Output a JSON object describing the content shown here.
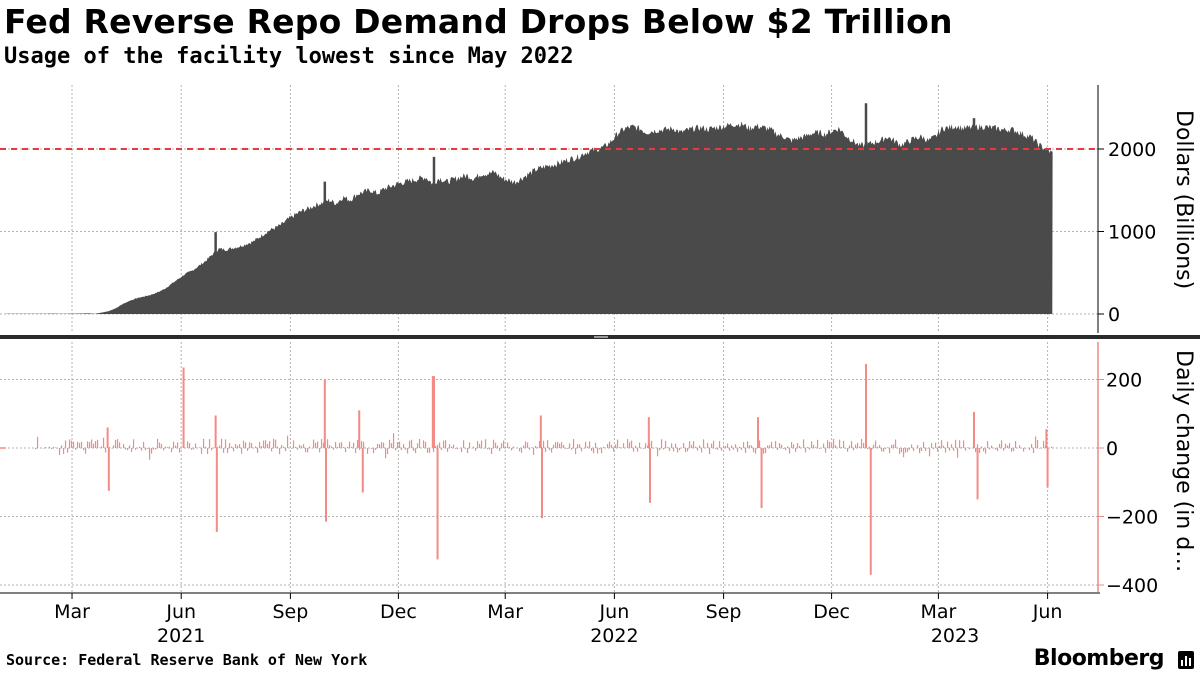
{
  "title": "Fed Reverse Repo Demand Drops Below $2 Trillion",
  "subtitle": "Usage of the facility lowest since May 2022",
  "source": "Source: Federal Reserve Bank of New York",
  "brand": "Bloomberg",
  "colors": {
    "area": "#4a4a4a",
    "change_bars": "#f28a85",
    "threshold": "#e8393f",
    "grid": "#b3b3b3",
    "axis": "#000000"
  },
  "chart_data": [
    {
      "type": "area",
      "title": "Reverse repo usage",
      "ylabel": "Dollars (Billions)",
      "ylim": [
        0,
        2800
      ],
      "yticks": [
        0,
        1000,
        2000
      ],
      "threshold": 2000,
      "x_start": "2021-01-04",
      "x_end": "2023-06-05",
      "weekly_values": [
        2,
        3,
        2,
        3,
        2,
        2,
        4,
        5,
        3,
        4,
        5,
        6,
        8,
        3,
        18,
        35,
        70,
        120,
        160,
        190,
        210,
        230,
        260,
        300,
        360,
        420,
        480,
        520,
        580,
        640,
        720,
        790,
        780,
        800,
        820,
        850,
        880,
        940,
        1000,
        1040,
        1080,
        1150,
        1200,
        1250,
        1280,
        1320,
        1350,
        1380,
        1340,
        1420,
        1380,
        1450,
        1480,
        1500,
        1460,
        1520,
        1550,
        1580,
        1600,
        1620,
        1640,
        1660,
        1580,
        1650,
        1600,
        1630,
        1660,
        1680,
        1640,
        1700,
        1700,
        1720,
        1650,
        1620,
        1600,
        1650,
        1700,
        1750,
        1780,
        1800,
        1820,
        1850,
        1880,
        1900,
        1950,
        1980,
        2000,
        2030,
        2100,
        2200,
        2250,
        2270,
        2250,
        2200,
        2220,
        2230,
        2240,
        2250,
        2200,
        2230,
        2250,
        2260,
        2240,
        2260,
        2270,
        2290,
        2300,
        2300,
        2250,
        2280,
        2260,
        2240,
        2180,
        2150,
        2100,
        2130,
        2150,
        2190,
        2200,
        2180,
        2220,
        2250,
        2160,
        2100,
        2040,
        2050,
        2080,
        2100,
        2150,
        2100,
        2050,
        2090,
        2130,
        2150,
        2100,
        2150,
        2250,
        2260,
        2280,
        2250,
        2260,
        2270,
        2270,
        2260,
        2250,
        2230,
        2240,
        2210,
        2170,
        2140,
        2050,
        2000,
        1950
      ],
      "spikes": [
        {
          "date": "2021-06-30",
          "value": 992
        },
        {
          "date": "2021-09-30",
          "value": 1604
        },
        {
          "date": "2021-12-31",
          "value": 1905
        },
        {
          "date": "2022-12-30",
          "value": 2554
        },
        {
          "date": "2023-03-31",
          "value": 2375
        }
      ],
      "ylim_change": [
        -450,
        300
      ],
      "yticks_change": [
        -400,
        -200,
        0,
        200
      ],
      "ylabel_change": "Daily change (in d…",
      "change_spikes": [
        {
          "date": "2021-03-31",
          "value": 60
        },
        {
          "date": "2021-04-01",
          "value": -125
        },
        {
          "date": "2021-06-03",
          "value": 235
        },
        {
          "date": "2021-06-30",
          "value": 95
        },
        {
          "date": "2021-07-01",
          "value": -245
        },
        {
          "date": "2021-09-30",
          "value": 200
        },
        {
          "date": "2021-10-01",
          "value": -215
        },
        {
          "date": "2021-10-29",
          "value": 110
        },
        {
          "date": "2021-11-01",
          "value": -130
        },
        {
          "date": "2021-12-30",
          "value": 210
        },
        {
          "date": "2021-12-31",
          "value": 210
        },
        {
          "date": "2022-01-03",
          "value": -325
        },
        {
          "date": "2022-03-31",
          "value": 95
        },
        {
          "date": "2022-04-01",
          "value": -205
        },
        {
          "date": "2022-06-30",
          "value": 90
        },
        {
          "date": "2022-07-01",
          "value": -160
        },
        {
          "date": "2022-09-30",
          "value": 90
        },
        {
          "date": "2022-10-03",
          "value": -175
        },
        {
          "date": "2022-12-30",
          "value": 245
        },
        {
          "date": "2023-01-03",
          "value": -370
        },
        {
          "date": "2023-03-31",
          "value": 105
        },
        {
          "date": "2023-04-03",
          "value": -150
        },
        {
          "date": "2023-05-31",
          "value": 55
        },
        {
          "date": "2023-06-01",
          "value": -115
        }
      ]
    }
  ],
  "x_axis": {
    "months": [
      {
        "label": "Mar",
        "date": "2021-03-01"
      },
      {
        "label": "Jun",
        "date": "2021-06-01"
      },
      {
        "label": "Sep",
        "date": "2021-09-01"
      },
      {
        "label": "Dec",
        "date": "2021-12-01"
      },
      {
        "label": "Mar",
        "date": "2022-03-01"
      },
      {
        "label": "Jun",
        "date": "2022-06-01"
      },
      {
        "label": "Sep",
        "date": "2022-09-01"
      },
      {
        "label": "Dec",
        "date": "2022-12-01"
      },
      {
        "label": "Mar",
        "date": "2023-03-01"
      },
      {
        "label": "Jun",
        "date": "2023-06-01"
      }
    ],
    "years": [
      {
        "label": "2021",
        "date": "2021-06-01"
      },
      {
        "label": "2022",
        "date": "2022-06-01"
      },
      {
        "label": "2023",
        "date": "2023-03-15"
      }
    ],
    "domain_start": "2021-01-01",
    "domain_end": "2023-06-30"
  }
}
